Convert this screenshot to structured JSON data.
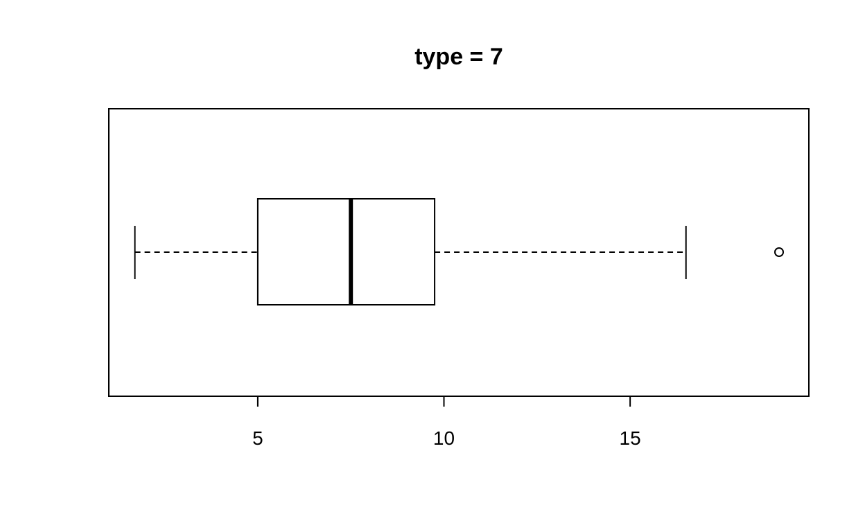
{
  "chart_data": {
    "type": "boxplot",
    "title": "type = 7",
    "orientation": "horizontal",
    "xlabel": "",
    "ylabel": "",
    "xlim": [
      1.0,
      19.8
    ],
    "x_ticks": [
      5,
      10,
      15
    ],
    "x_tick_labels": [
      "5",
      "10",
      "15"
    ],
    "box": {
      "whisker_low": 1.7,
      "q1": 5.0,
      "median": 7.5,
      "q3": 9.75,
      "whisker_high": 16.5
    },
    "outliers": [
      19.0
    ],
    "grid": false,
    "legend": "none"
  }
}
